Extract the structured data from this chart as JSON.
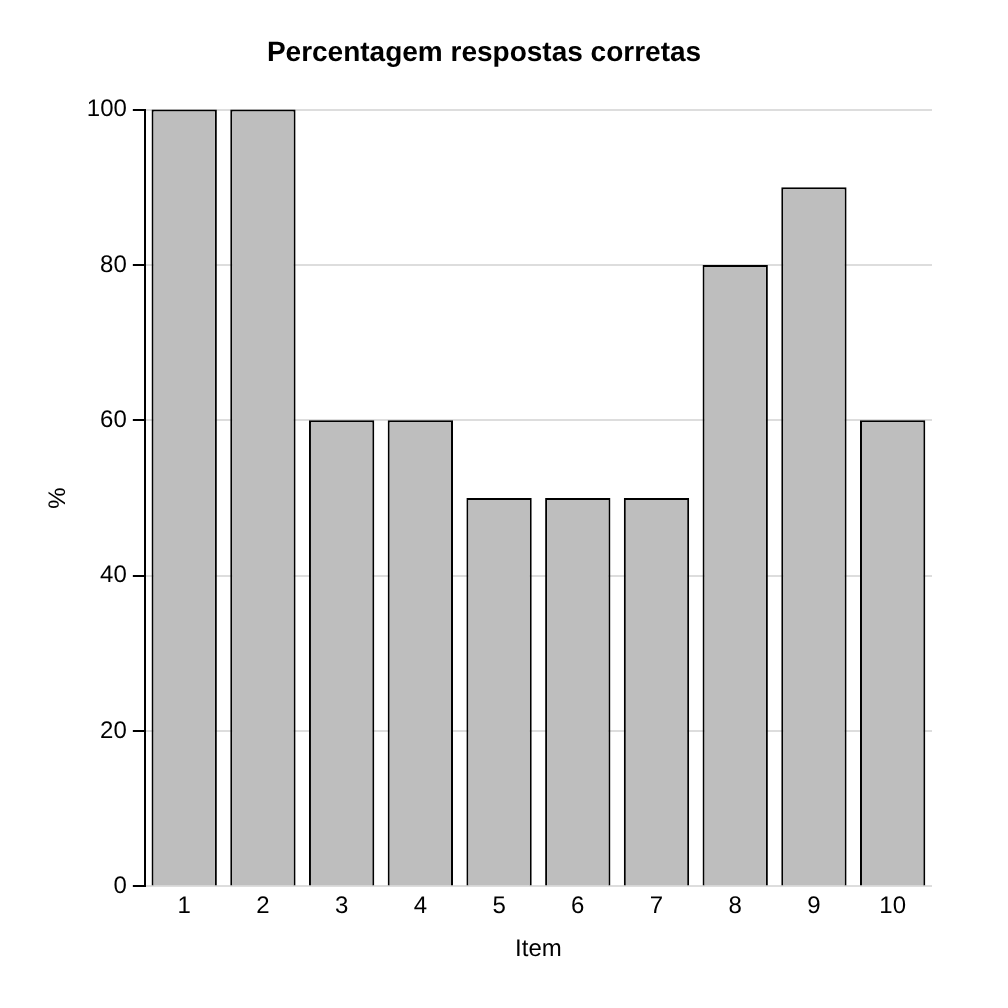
{
  "chart_data": {
    "type": "bar",
    "title": "Percentagem respostas corretas",
    "xlabel": "Item",
    "ylabel": "%",
    "categories": [
      "1",
      "2",
      "3",
      "4",
      "5",
      "6",
      "7",
      "8",
      "9",
      "10"
    ],
    "values": [
      100,
      100,
      60,
      60,
      50,
      50,
      50,
      80,
      90,
      60
    ],
    "color": "#bebebe",
    "ylim": [
      0,
      100
    ],
    "yticks": [
      0,
      20,
      40,
      60,
      80,
      100
    ],
    "grid": "y"
  }
}
